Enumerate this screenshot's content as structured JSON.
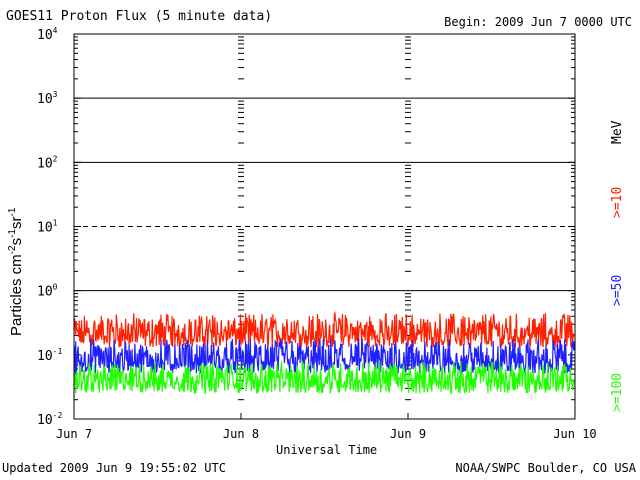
{
  "header": {
    "title": "GOES11 Proton Flux (5 minute data)",
    "begin": "Begin: 2009 Jun 7 0000 UTC"
  },
  "footer": {
    "updated": "Updated 2009 Jun  9 19:55:02 UTC",
    "credit": "NOAA/SWPC Boulder, CO USA"
  },
  "chart_data": {
    "type": "line",
    "title": "GOES11 Proton Flux (5 minute data)",
    "xlabel": "Universal Time",
    "ylabel": {
      "base": "Particles cm",
      "e1": "-2",
      "s": "s",
      "e2": "-1",
      "sr": "sr",
      "e3": "-1"
    },
    "yscale": "log",
    "ylim": [
      0.01,
      10000
    ],
    "ytick_labels": [
      {
        "base": "10",
        "exp": "-2"
      },
      {
        "base": "10",
        "exp": "-1"
      },
      {
        "base": "10",
        "exp": "0"
      },
      {
        "base": "10",
        "exp": "1"
      },
      {
        "base": "10",
        "exp": "2"
      },
      {
        "base": "10",
        "exp": "3"
      },
      {
        "base": "10",
        "exp": "4"
      }
    ],
    "reference_lines": [
      {
        "y": 1,
        "style": "solid"
      },
      {
        "y": 10,
        "style": "dashed"
      },
      {
        "y": 100,
        "style": "solid"
      },
      {
        "y": 1000,
        "style": "solid"
      }
    ],
    "x_ticks": [
      "Jun 7",
      "Jun 8",
      "Jun 9",
      "Jun 10"
    ],
    "xlim": [
      "2009-06-07 00:00",
      "2009-06-10 00:00"
    ],
    "legend_unit": "MeV",
    "series": [
      {
        "name": ">=10",
        "color": "#ff2000",
        "typical_range": [
          0.13,
          0.45
        ],
        "median": 0.21
      },
      {
        "name": ">=50",
        "color": "#2020ff",
        "typical_range": [
          0.05,
          0.18
        ],
        "median": 0.08
      },
      {
        "name": ">=100",
        "color": "#20ff00",
        "typical_range": [
          0.025,
          0.08
        ],
        "median": 0.04
      }
    ]
  }
}
